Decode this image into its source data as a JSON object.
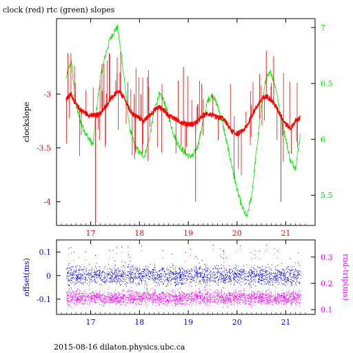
{
  "footer": "2015-08-16 dilaton.physics.ubc.ca",
  "colors": {
    "clock": "#ff0000",
    "rtc": "#00ee00",
    "offset": "#0000ff",
    "rndtrip": "#ff00ff",
    "axes": "#000000"
  },
  "chart_data": [
    {
      "type": "line",
      "title": "clock (red) rtc (green) slopes",
      "xlabel": "",
      "ylabel": "clockslope",
      "y2label": "",
      "xlim": [
        16.3,
        21.6
      ],
      "ylim": [
        -4.22,
        -2.3
      ],
      "y2lim": [
        5.23,
        7.08
      ],
      "xticks": [
        17,
        18,
        19,
        20,
        21
      ],
      "yticks": [
        -3,
        -3.5,
        -4
      ],
      "y2ticks": [
        7,
        6.5,
        6,
        5.5
      ],
      "grid": false,
      "series": [
        {
          "name": "clock",
          "axis": "left",
          "x": [
            16.5,
            16.6,
            16.7,
            16.8,
            16.9,
            17.0,
            17.1,
            17.2,
            17.3,
            17.4,
            17.5,
            17.6,
            17.7,
            17.8,
            17.9,
            18.0,
            18.1,
            18.2,
            18.3,
            18.4,
            18.5,
            18.6,
            18.7,
            18.8,
            18.9,
            19.0,
            19.1,
            19.2,
            19.3,
            19.4,
            19.5,
            19.6,
            19.7,
            19.8,
            19.9,
            20.0,
            20.1,
            20.2,
            20.3,
            20.4,
            20.5,
            20.6,
            20.7,
            20.8,
            20.9,
            21.0,
            21.1,
            21.2,
            21.3
          ],
          "values": [
            -3.05,
            -3.0,
            -3.1,
            -3.15,
            -3.18,
            -3.2,
            -3.2,
            -3.18,
            -3.12,
            -3.05,
            -3.0,
            -2.98,
            -3.05,
            -3.15,
            -3.2,
            -3.22,
            -3.25,
            -3.2,
            -3.15,
            -3.12,
            -3.15,
            -3.2,
            -3.22,
            -3.25,
            -3.27,
            -3.28,
            -3.28,
            -3.25,
            -3.2,
            -3.18,
            -3.2,
            -3.22,
            -3.22,
            -3.28,
            -3.35,
            -3.37,
            -3.35,
            -3.3,
            -3.2,
            -3.12,
            -3.05,
            -3.02,
            -3.05,
            -3.12,
            -3.2,
            -3.28,
            -3.32,
            -3.25,
            -3.22
          ]
        },
        {
          "name": "rtc",
          "axis": "right",
          "x": [
            16.5,
            16.6,
            16.7,
            16.8,
            16.9,
            17.0,
            17.05,
            17.1,
            17.2,
            17.3,
            17.4,
            17.5,
            17.55,
            17.6,
            17.7,
            17.8,
            17.9,
            18.0,
            18.1,
            18.2,
            18.3,
            18.4,
            18.5,
            18.6,
            18.7,
            18.8,
            18.9,
            19.0,
            19.1,
            19.2,
            19.3,
            19.4,
            19.5,
            19.6,
            19.7,
            19.8,
            19.9,
            20.0,
            20.1,
            20.2,
            20.3,
            20.4,
            20.5,
            20.6,
            20.7,
            20.8,
            20.9,
            21.0,
            21.1,
            21.2,
            21.3
          ],
          "values": [
            6.55,
            6.7,
            6.3,
            6.15,
            6.05,
            5.98,
            5.95,
            6.2,
            6.55,
            6.75,
            6.9,
            6.98,
            7.0,
            6.85,
            6.5,
            6.1,
            5.95,
            5.88,
            5.85,
            6.0,
            6.25,
            6.4,
            6.35,
            6.2,
            6.05,
            5.95,
            5.9,
            5.85,
            5.85,
            5.95,
            6.15,
            6.35,
            6.4,
            6.3,
            6.15,
            5.95,
            5.75,
            5.55,
            5.4,
            5.3,
            5.5,
            5.9,
            6.3,
            6.55,
            6.6,
            6.45,
            6.2,
            6.0,
            5.8,
            5.75,
            6.05
          ]
        }
      ]
    },
    {
      "type": "scatter",
      "title": "",
      "xlabel": "",
      "ylabel": "offset(ms)",
      "y2label": "rnd-trip(ms)",
      "xlim": [
        16.3,
        21.6
      ],
      "ylim": [
        -0.165,
        0.152
      ],
      "y2lim": [
        0.082,
        0.365
      ],
      "xticks": [
        17,
        18,
        19,
        20,
        21
      ],
      "yticks": [
        0.1,
        0,
        -0.1
      ],
      "y2ticks": [
        0.3,
        0.2,
        0.1
      ],
      "grid": false,
      "series": [
        {
          "name": "offset",
          "axis": "left",
          "x_range": [
            16.5,
            21.3
          ],
          "center": 0.0,
          "spread": 0.03,
          "outlier_max": 0.13
        },
        {
          "name": "rnd-trip",
          "axis": "right",
          "x_range": [
            16.5,
            21.3
          ],
          "center": 0.145,
          "spread": 0.02,
          "outlier_max": 0.33
        }
      ]
    }
  ]
}
